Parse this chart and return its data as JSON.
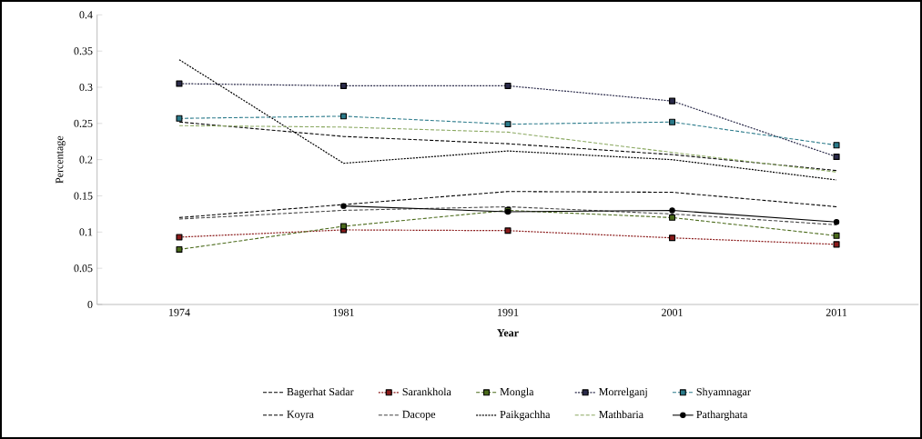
{
  "chart_data": {
    "type": "line",
    "xlabel": "Year",
    "ylabel": "Percentage",
    "categories": [
      "1974",
      "1981",
      "1991",
      "2001",
      "2011"
    ],
    "series": [
      {
        "name": "Bagerhat Sadar",
        "color": "#000000",
        "line_style": "dashed",
        "marker": "none",
        "values": [
          0.252,
          0.232,
          0.222,
          0.207,
          0.185
        ]
      },
      {
        "name": "Sarankhola",
        "color": "#8b1a1a",
        "line_style": "dotted",
        "marker": "square",
        "values": [
          0.093,
          0.103,
          0.102,
          0.092,
          0.083
        ]
      },
      {
        "name": "Mongla",
        "color": "#4a6a1a",
        "line_style": "dashed",
        "marker": "square",
        "values": [
          0.076,
          0.108,
          0.13,
          0.12,
          0.095
        ]
      },
      {
        "name": "Morrelganj",
        "color": "#2a2a4a",
        "line_style": "dotted",
        "marker": "square",
        "values": [
          0.305,
          0.302,
          0.302,
          0.281,
          0.204
        ]
      },
      {
        "name": "Shyamnagar",
        "color": "#2a7a8a",
        "line_style": "dashed",
        "marker": "square",
        "values": [
          0.257,
          0.26,
          0.249,
          0.252,
          0.22
        ]
      },
      {
        "name": "Koyra",
        "color": "#000000",
        "line_style": "dashed",
        "marker": "none",
        "values": [
          0.12,
          0.138,
          0.156,
          0.155,
          0.135
        ]
      },
      {
        "name": "Dacope",
        "color": "#404040",
        "line_style": "dashed",
        "marker": "none",
        "values": [
          0.118,
          0.13,
          0.135,
          0.125,
          0.11
        ]
      },
      {
        "name": "Paikgachha",
        "color": "#000000",
        "line_style": "dotted",
        "marker": "none",
        "values": [
          0.338,
          0.195,
          0.212,
          0.2,
          0.172
        ]
      },
      {
        "name": "Mathbaria",
        "color": "#8aa860",
        "line_style": "dashed",
        "marker": "none",
        "values": [
          0.247,
          0.245,
          0.238,
          0.21,
          0.183
        ]
      },
      {
        "name": "Patharghata",
        "color": "#000000",
        "line_style": "solid",
        "marker": "circle",
        "values": [
          null,
          0.136,
          0.128,
          0.13,
          0.114
        ]
      }
    ],
    "ylim": [
      0,
      0.4
    ],
    "yticks": [
      0,
      0.05,
      0.1,
      0.15,
      0.2,
      0.25,
      0.3,
      0.35,
      0.4
    ],
    "grid": false,
    "legend": "bottom"
  }
}
